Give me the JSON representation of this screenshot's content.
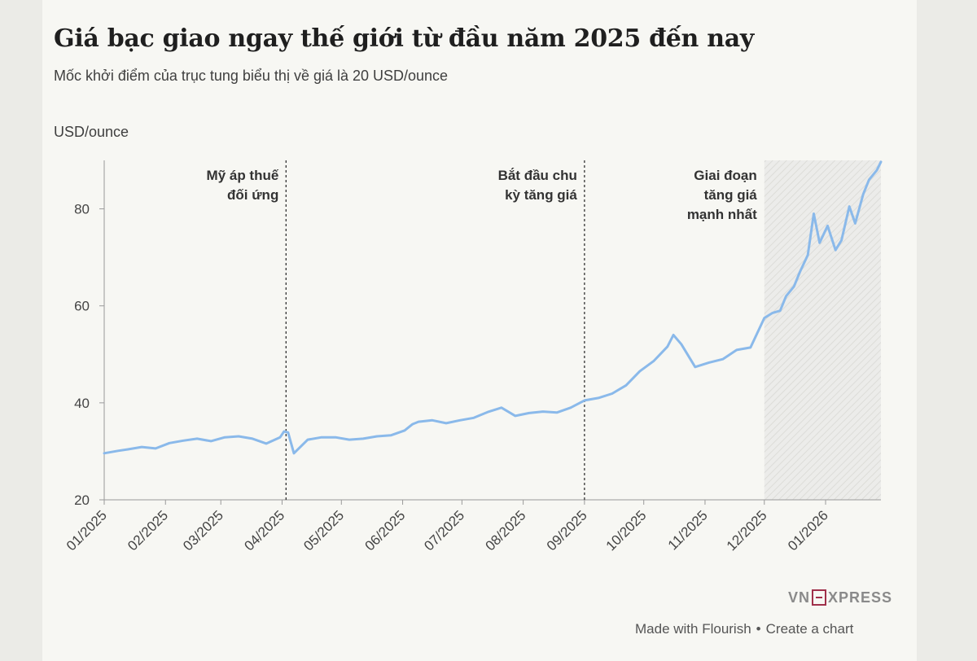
{
  "title": "Giá bạc giao ngay thế giới từ đầu năm 2025 đến nay",
  "subtitle": "Mốc khởi điểm của trục tung biểu thị về giá là 20 USD/ounce",
  "footer": {
    "logo_left": "VN",
    "logo_right": "XPRESS",
    "made_with": "Made with Flourish",
    "separator": "•",
    "create": "Create a chart"
  },
  "colors": {
    "line": "#8ab9ea",
    "background": "#f7f7f3",
    "axis": "#999999",
    "text": "#333333",
    "shade": "#e4e4e0"
  },
  "chart_data": {
    "type": "line",
    "title": "Giá bạc giao ngay thế giới từ đầu năm 2025 đến nay",
    "ylabel": "USD/ounce",
    "ylim": [
      20,
      90
    ],
    "yticks": [
      20,
      40,
      60,
      80
    ],
    "xlim": [
      "2025-01-01",
      "2026-01-29"
    ],
    "xticks": [
      "01/2025",
      "02/2025",
      "03/2025",
      "04/2025",
      "05/2025",
      "06/2025",
      "07/2025",
      "08/2025",
      "09/2025",
      "10/2025",
      "11/2025",
      "12/2025",
      "01/2026"
    ],
    "grid": false,
    "annotations": [
      {
        "date": "2025-04-03",
        "lines": [
          "Mỹ áp thuế",
          "đối ứng"
        ]
      },
      {
        "date": "2025-09-01",
        "lines": [
          "Bắt đầu chu",
          "kỳ tăng giá"
        ]
      }
    ],
    "shaded_region": {
      "from": "2025-12-01",
      "to": "2026-01-29",
      "lines": [
        "Giai đoạn",
        "tăng giá",
        "mạnh nhất"
      ]
    },
    "series": [
      {
        "x": [
          "2025-01-01",
          "2025-01-08",
          "2025-01-13",
          "2025-01-20",
          "2025-01-27",
          "2025-02-03",
          "2025-02-10",
          "2025-02-17",
          "2025-02-24",
          "2025-03-03",
          "2025-03-10",
          "2025-03-17",
          "2025-03-24",
          "2025-03-31",
          "2025-04-02",
          "2025-04-04",
          "2025-04-07",
          "2025-04-14",
          "2025-04-21",
          "2025-04-28",
          "2025-05-05",
          "2025-05-12",
          "2025-05-19",
          "2025-05-26",
          "2025-06-02",
          "2025-06-06",
          "2025-06-09",
          "2025-06-16",
          "2025-06-23",
          "2025-06-30",
          "2025-07-07",
          "2025-07-14",
          "2025-07-21",
          "2025-07-28",
          "2025-08-04",
          "2025-08-11",
          "2025-08-18",
          "2025-08-25",
          "2025-09-01",
          "2025-09-08",
          "2025-09-15",
          "2025-09-22",
          "2025-09-29",
          "2025-10-06",
          "2025-10-13",
          "2025-10-16",
          "2025-10-20",
          "2025-10-27",
          "2025-11-03",
          "2025-11-10",
          "2025-11-17",
          "2025-11-24",
          "2025-12-01",
          "2025-12-05",
          "2025-12-09",
          "2025-12-12",
          "2025-12-16",
          "2025-12-19",
          "2025-12-23",
          "2025-12-26",
          "2025-12-29",
          "2026-01-02",
          "2026-01-06",
          "2026-01-09",
          "2026-01-13",
          "2026-01-16",
          "2026-01-20",
          "2026-01-23",
          "2026-01-27",
          "2026-01-29"
        ],
        "values": [
          29.6,
          30.1,
          30.4,
          30.9,
          30.6,
          31.7,
          32.2,
          32.6,
          32.1,
          32.9,
          33.1,
          32.6,
          31.6,
          32.9,
          34.1,
          33.9,
          29.6,
          32.4,
          32.9,
          32.9,
          32.4,
          32.6,
          33.1,
          33.3,
          34.3,
          35.6,
          36.1,
          36.4,
          35.8,
          36.4,
          36.9,
          38.1,
          39.0,
          37.3,
          37.9,
          38.2,
          38.0,
          39.0,
          40.5,
          41.0,
          41.9,
          43.6,
          46.5,
          48.6,
          51.6,
          54.0,
          52.1,
          47.4,
          48.3,
          49.0,
          50.9,
          51.4,
          57.5,
          58.5,
          59.0,
          62.0,
          64.0,
          67.0,
          70.5,
          79.0,
          73.0,
          76.5,
          71.5,
          73.5,
          80.5,
          77.0,
          83.0,
          86.0,
          88.0,
          89.7
        ]
      }
    ]
  }
}
